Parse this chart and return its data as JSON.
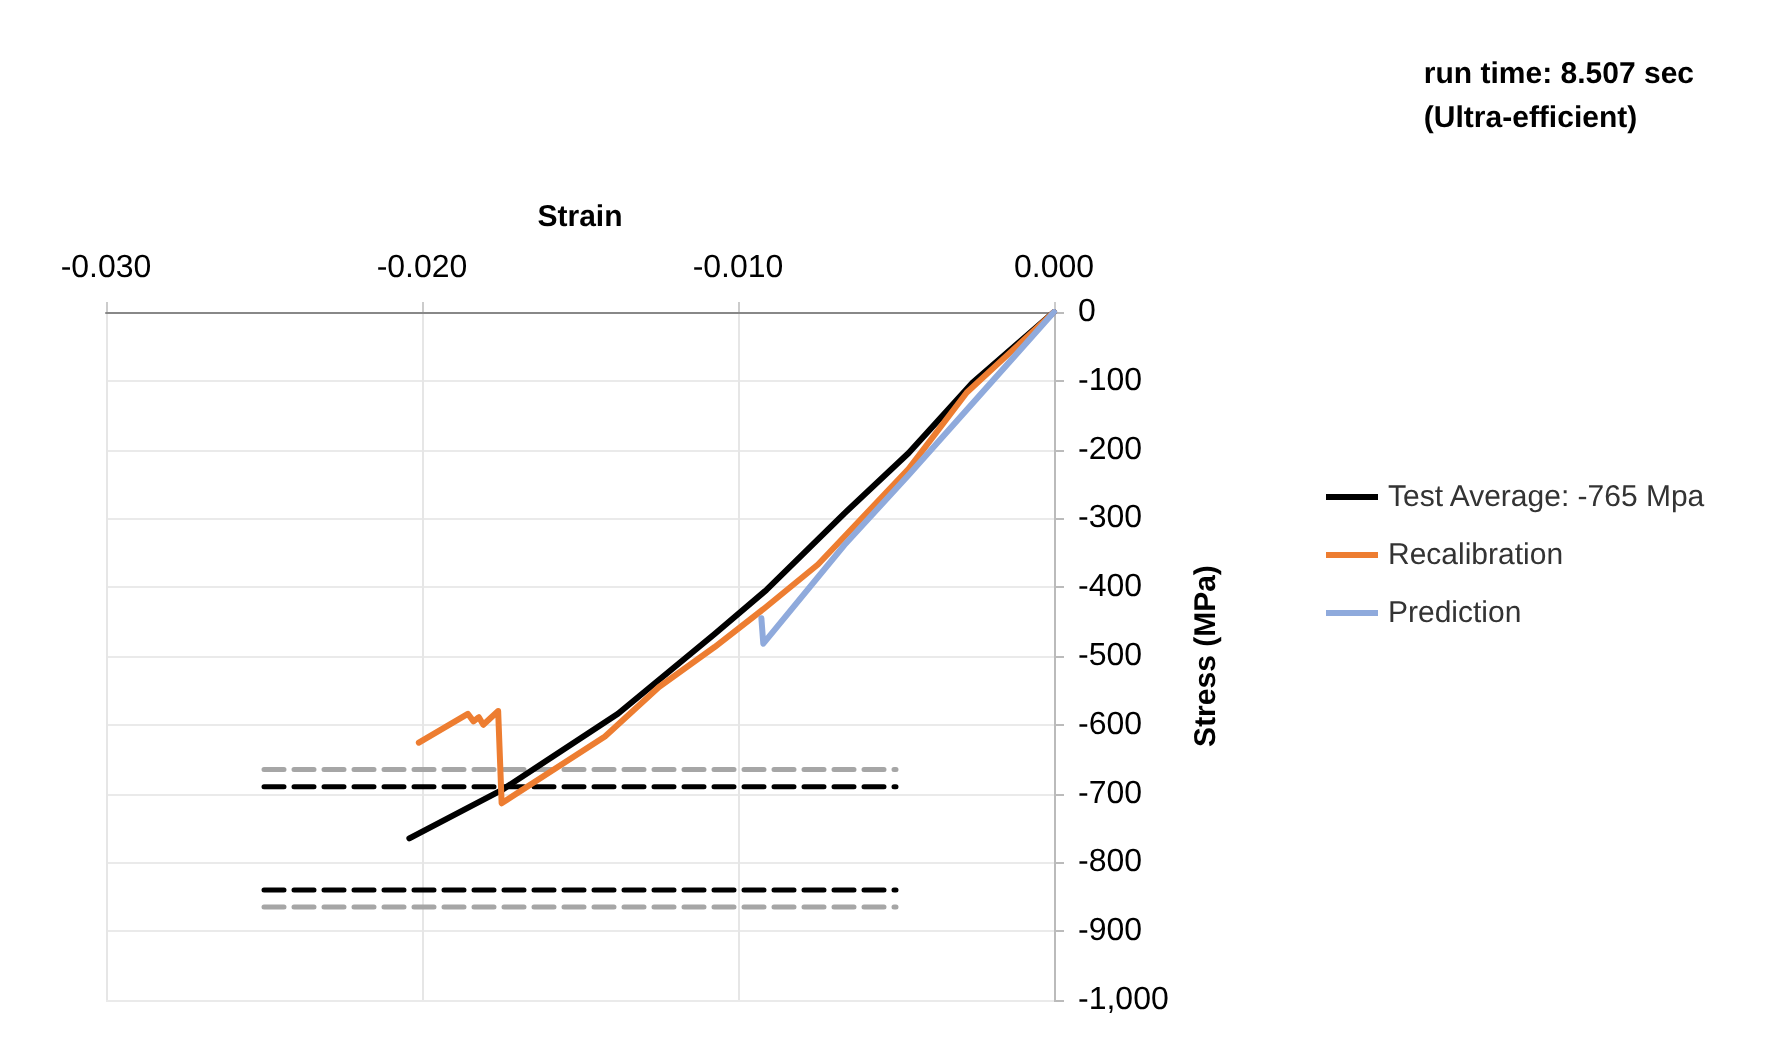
{
  "chart_data": {
    "type": "line",
    "xlabel": "Strain",
    "ylabel": "Stress (MPa)",
    "annotations": [
      "run time: 8.507 sec\n(Ultra-efficient)"
    ],
    "xlim": [
      -0.03,
      0
    ],
    "xticks": [
      {
        "value": -0.03,
        "label": "-0.030"
      },
      {
        "value": -0.02,
        "label": "-0.020"
      },
      {
        "value": -0.01,
        "label": "-0.010"
      },
      {
        "value": 0,
        "label": "0.000"
      }
    ],
    "ylim": [
      -1000,
      0
    ],
    "yticks": [
      {
        "value": -1000,
        "label": "-1,000"
      },
      -900,
      -800,
      -700,
      -600,
      -500,
      -400,
      -300,
      -200,
      -100,
      0
    ],
    "grid": true,
    "legend": "right",
    "marker": "none",
    "line_style": "solid",
    "series": [
      {
        "name": "Test Average: -765 Mpa",
        "color": "#000000",
        "x": [
          0,
          -0.00258,
          -0.0046,
          -0.00664,
          -0.0091,
          -0.01074,
          -0.0138,
          -0.01748,
          -0.0204
        ],
        "values": [
          0,
          -103,
          -205,
          -293,
          -404,
          -468,
          -584,
          -695,
          -765
        ]
      },
      {
        "name": "Recalibration",
        "color": "#ed7d31",
        "x": [
          0,
          -0.00276,
          -0.0046,
          -0.00747,
          -0.0092,
          -0.01074,
          -0.0125,
          -0.01421,
          -0.01748,
          -0.01759,
          -0.01806,
          -0.0182,
          -0.01837,
          -0.01855,
          -0.0201
        ],
        "values": [
          0,
          -117,
          -228,
          -367,
          -432,
          -487,
          -545,
          -617,
          -714,
          -580,
          -600,
          -589,
          -595,
          -584,
          -626
        ]
      },
      {
        "name": "Prediction",
        "color": "#8faadc",
        "x": [
          0,
          -0.0046,
          -0.00664,
          -0.0092,
          -0.00926
        ],
        "values": [
          0,
          -237,
          -339,
          -482,
          -445
        ]
      },
      {
        "color": "#a6a6a6",
        "line_style": "dashed",
        "x": [
          -0.025,
          -0.005
        ],
        "values": [
          -665,
          -665
        ]
      },
      {
        "color": "#000000",
        "line_style": "dashed",
        "x": [
          -0.025,
          -0.005
        ],
        "values": [
          -690,
          -690
        ]
      },
      {
        "color": "#000000",
        "line_style": "dashed",
        "x": [
          -0.025,
          -0.005
        ],
        "values": [
          -840,
          -840
        ]
      },
      {
        "color": "#a6a6a6",
        "line_style": "dashed",
        "x": [
          -0.025,
          -0.005
        ],
        "values": [
          -865,
          -865
        ]
      }
    ]
  }
}
